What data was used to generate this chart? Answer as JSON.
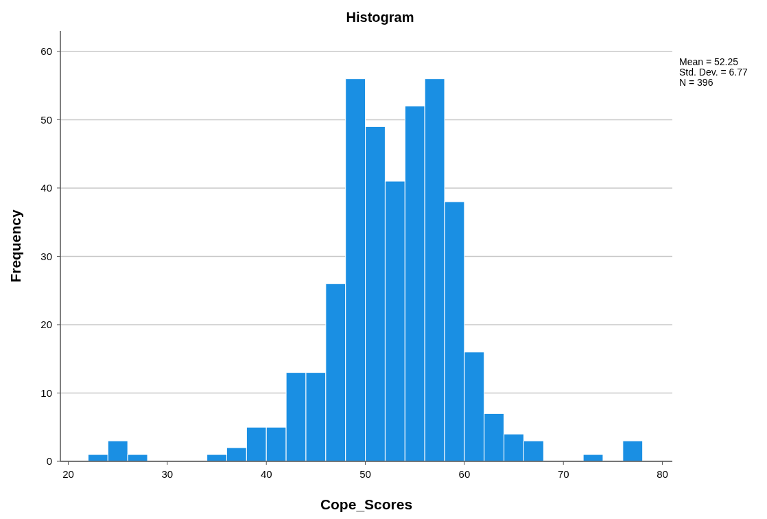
{
  "chart_data": {
    "type": "histogram",
    "title": "Histogram",
    "xlabel": "Cope_Scores",
    "ylabel": "Frequency",
    "bins": [
      22,
      24,
      26,
      28,
      30,
      32,
      34,
      36,
      38,
      40,
      42,
      44,
      46,
      48,
      50,
      52,
      54,
      56,
      58,
      60,
      62,
      64,
      66,
      68,
      70,
      72,
      74,
      76,
      78
    ],
    "values": [
      1,
      3,
      1,
      0,
      0,
      0,
      1,
      2,
      5,
      5,
      13,
      13,
      26,
      56,
      49,
      41,
      52,
      56,
      38,
      16,
      7,
      4,
      3,
      0,
      0,
      1,
      0,
      3
    ],
    "color": "#1a8fe3",
    "xlim": [
      19.2,
      81
    ],
    "xticks": [
      20,
      30,
      40,
      50,
      60,
      70,
      80
    ],
    "ylim": [
      0,
      63
    ],
    "yticks": [
      0,
      10,
      20,
      30,
      40,
      50,
      60
    ],
    "grid": "y",
    "annotations": [
      "Mean = 52.25",
      "Std. Dev. = 6.77",
      "N = 396"
    ]
  }
}
